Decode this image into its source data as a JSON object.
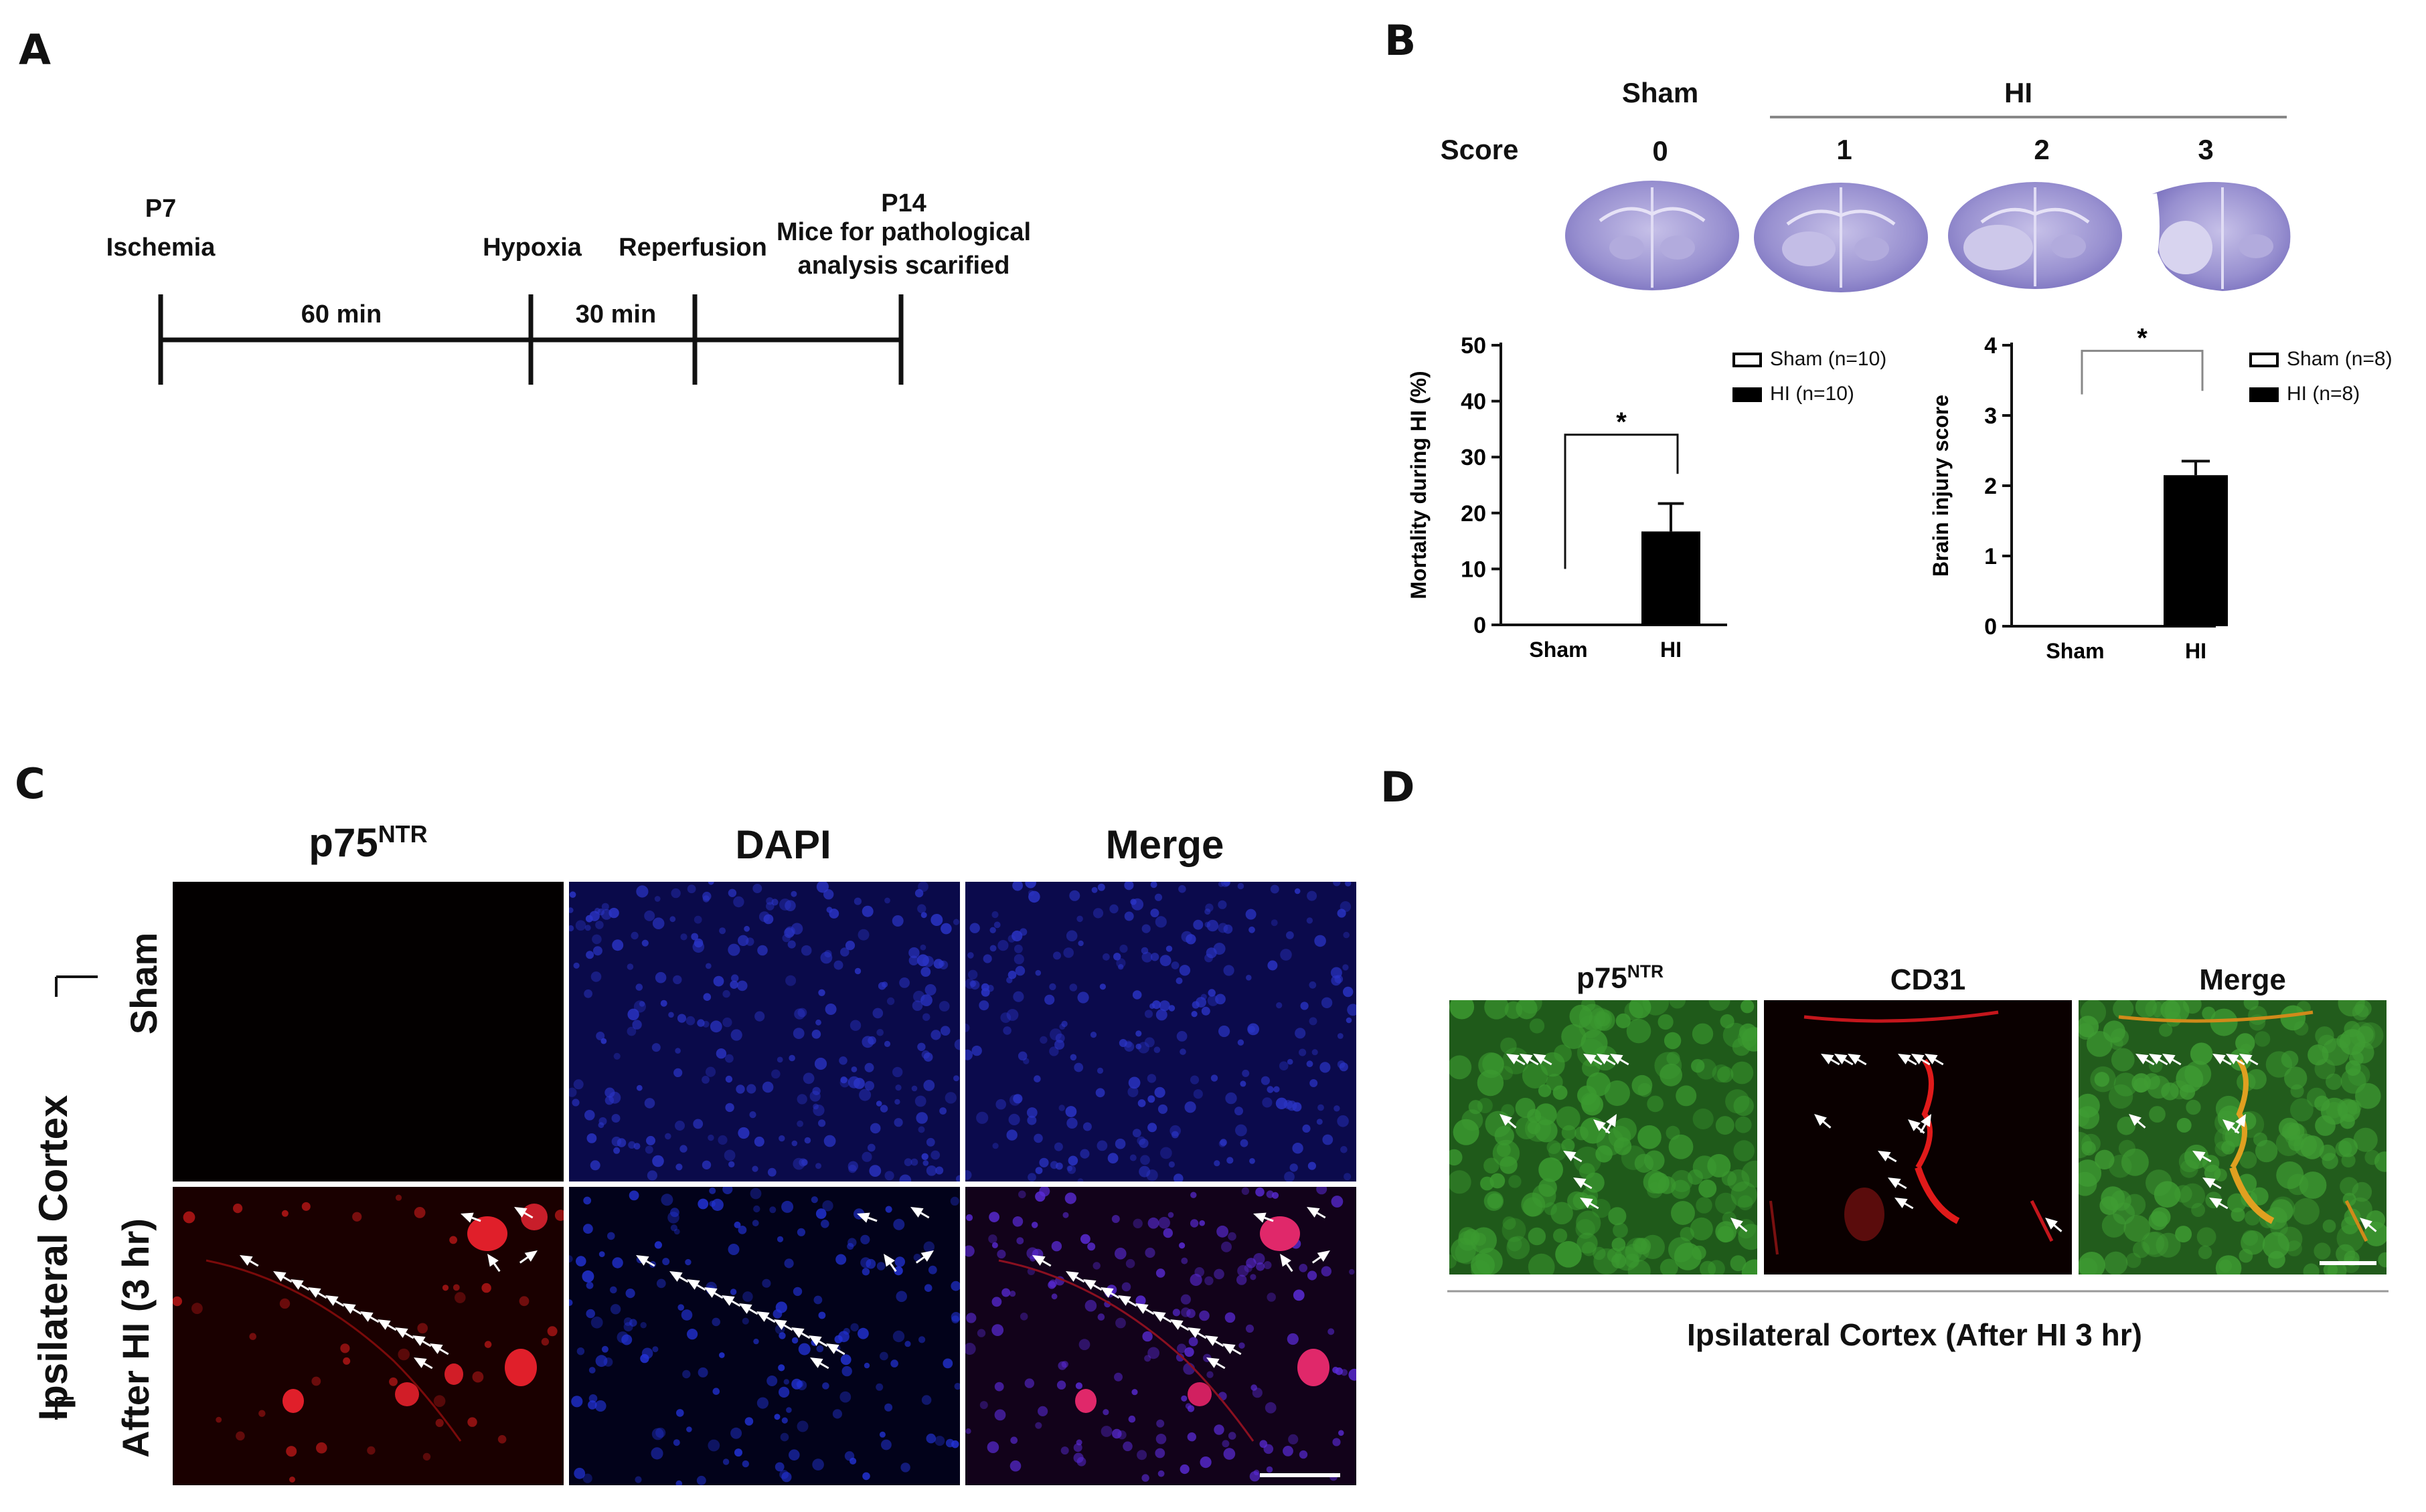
{
  "panels": {
    "a": "A",
    "b": "B",
    "c": "C",
    "d": "D"
  },
  "timeline": {
    "p7": "P7",
    "ischemia": "Ischemia",
    "hypoxia": "Hypoxia",
    "reperfusion": "Reperfusion",
    "p14": "P14",
    "p14_line1": "Mice for pathological",
    "p14_line2": "analysis scarified",
    "seg1": "60 min",
    "seg2": "30 min"
  },
  "brain_row": {
    "sham": "Sham",
    "hi": "HI",
    "score_label": "Score",
    "scores": [
      "0",
      "1",
      "2",
      "3"
    ]
  },
  "chart_data": [
    {
      "type": "bar",
      "categories": [
        "Sham",
        "HI"
      ],
      "values": [
        0,
        16.7
      ],
      "errors": [
        0,
        5
      ],
      "ylabel": "Mortality during HI (%)",
      "ylim": [
        0,
        50
      ],
      "yticks": [
        "0",
        "10",
        "20",
        "30",
        "40",
        "50"
      ],
      "legend": [
        "Sham (n=10)",
        "HI (n=10)"
      ],
      "annotation": "*",
      "colors": {
        "sham": "#ffffff",
        "hi": "#000000"
      }
    },
    {
      "type": "bar",
      "categories": [
        "Sham",
        "HI"
      ],
      "values": [
        0,
        2.15
      ],
      "errors": [
        0,
        0.2
      ],
      "ylabel": "Brain injury score",
      "ylim": [
        0,
        4
      ],
      "yticks": [
        "0",
        "1",
        "2",
        "3",
        "4"
      ],
      "legend": [
        "Sham (n=8)",
        "HI (n=8)"
      ],
      "annotation": "*",
      "colors": {
        "sham": "#ffffff",
        "hi": "#000000"
      }
    }
  ],
  "panel_c": {
    "col1": "p75",
    "col1_sup": "NTR",
    "col2": "DAPI",
    "col3": "Merge",
    "row1": "Sham",
    "row2": "After HI (3 hr)",
    "group": "Ipsilateral Cortex"
  },
  "panel_d": {
    "col1": "p75",
    "col1_sup": "NTR",
    "col2": "CD31",
    "col3": "Merge",
    "caption": "Ipsilateral Cortex (After HI 3 hr)"
  }
}
